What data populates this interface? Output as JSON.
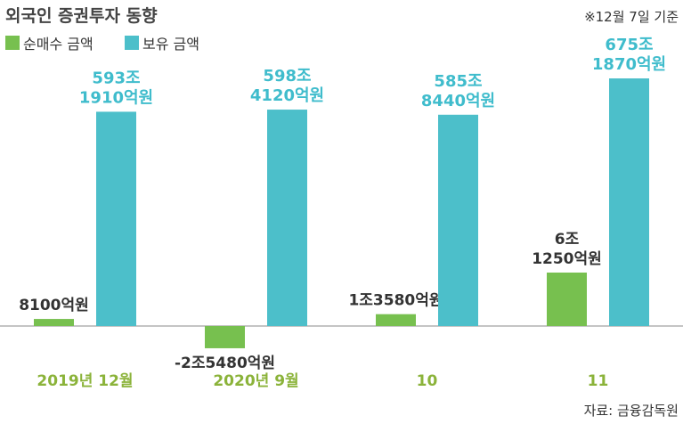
{
  "title": "외국인 증권투자 동향",
  "note": "※12월 7일 기준",
  "source": "자료: 금융감독원",
  "colors": {
    "net": "#77c04f",
    "hold": "#4cbfca",
    "axis": "#888888"
  },
  "chart_data": {
    "type": "bar",
    "categories": [
      "2019년 12월",
      "2020년 9월",
      "10",
      "11"
    ],
    "series": [
      {
        "name": "순매수 금액",
        "values": [
          8100,
          -25480,
          13580,
          61250
        ],
        "labels": [
          [
            "8100억원"
          ],
          [
            "-2조5480억원"
          ],
          [
            "1조3580억원"
          ],
          [
            "6조",
            "1250억원"
          ]
        ]
      },
      {
        "name": "보유 금액",
        "values": [
          5931910,
          5984120,
          5858440,
          6751870
        ],
        "labels": [
          [
            "593조",
            "1910억원"
          ],
          [
            "598조",
            "4120억원"
          ],
          [
            "585조",
            "8440억원"
          ],
          [
            "675조",
            "1870억원"
          ]
        ]
      }
    ],
    "unit": "억원",
    "legend_position": "top-left",
    "grid": false
  }
}
